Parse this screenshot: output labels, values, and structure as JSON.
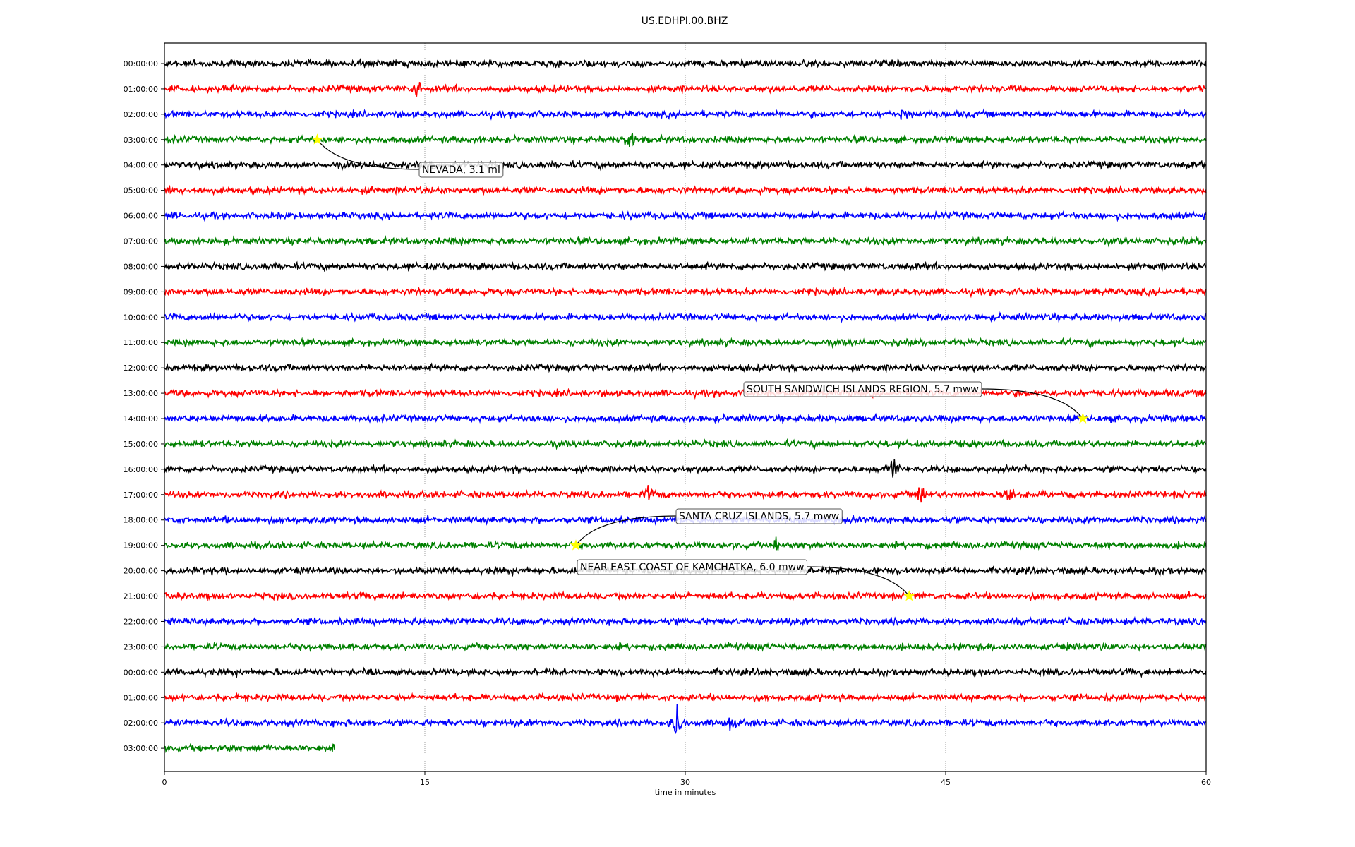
{
  "chart_data": {
    "type": "line",
    "title": "US.EDHPI.00.BHZ",
    "xlabel": "time in minutes",
    "ylabel": "",
    "xlim": [
      0,
      60
    ],
    "xticks": [
      0,
      15,
      30,
      45,
      60
    ],
    "grid": "vertical dotted at x ticks",
    "trace_colors": [
      "#000000",
      "#ff0000",
      "#0000ff",
      "#008000"
    ],
    "rows": [
      "00:00:00",
      "01:00:00",
      "02:00:00",
      "03:00:00",
      "04:00:00",
      "05:00:00",
      "06:00:00",
      "07:00:00",
      "08:00:00",
      "09:00:00",
      "10:00:00",
      "11:00:00",
      "12:00:00",
      "13:00:00",
      "14:00:00",
      "15:00:00",
      "16:00:00",
      "17:00:00",
      "18:00:00",
      "19:00:00",
      "20:00:00",
      "21:00:00",
      "22:00:00",
      "23:00:00",
      "00:00:00",
      "01:00:00",
      "02:00:00",
      "03:00:00"
    ],
    "last_trace_end_minute": 9.8,
    "spikes": [
      {
        "row": 1,
        "minute": 14.6,
        "amp": 18
      },
      {
        "row": 2,
        "minute": 42.5,
        "amp": 12
      },
      {
        "row": 3,
        "minute": 26.8,
        "amp": 30
      },
      {
        "row": 16,
        "minute": 42.0,
        "amp": 20
      },
      {
        "row": 17,
        "minute": 27.8,
        "amp": 18
      },
      {
        "row": 17,
        "minute": 43.5,
        "amp": 20
      },
      {
        "row": 17,
        "minute": 48.6,
        "amp": 22
      },
      {
        "row": 19,
        "minute": 35.2,
        "amp": 12
      },
      {
        "row": 26,
        "minute": 29.5,
        "amp": 28
      },
      {
        "row": 26,
        "minute": 32.6,
        "amp": 12
      }
    ],
    "events": [
      {
        "label": "NEVADA, 3.1 ml",
        "row": 3,
        "minute": 8.8
      },
      {
        "label": "SOUTH SANDWICH ISLANDS REGION, 5.7 mww",
        "row": 14,
        "minute": 52.9
      },
      {
        "label": "SANTA CRUZ ISLANDS, 5.7 mww",
        "row": 19,
        "minute": 23.7
      },
      {
        "label": "NEAR EAST COAST OF KAMCHATKA, 6.0 mww",
        "row": 21,
        "minute": 42.9
      }
    ],
    "event_marker_color": "#ffff00"
  }
}
